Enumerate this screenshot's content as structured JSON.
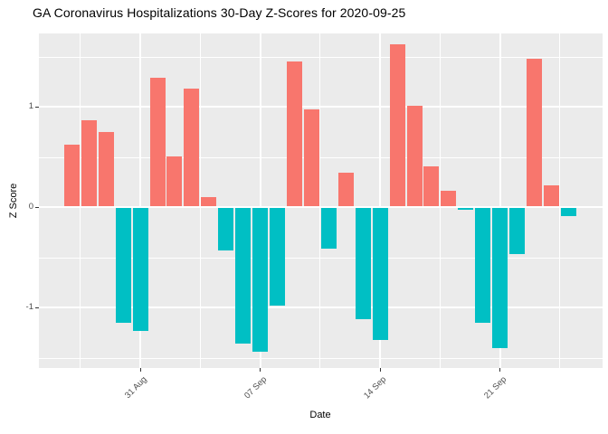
{
  "title": "GA Coronavirus Hospitalizations 30-Day Z-Scores for 2020-09-25",
  "chart_data": {
    "type": "bar",
    "title": "GA Coronavirus Hospitalizations 30-Day Z-Scores for 2020-09-25",
    "xlabel": "Date",
    "ylabel": "Z Score",
    "ylim": [
      -1.6,
      1.73
    ],
    "grid": "on",
    "legend": "none",
    "categories": [
      "2020-08-27",
      "2020-08-28",
      "2020-08-29",
      "2020-08-30",
      "2020-08-31",
      "2020-09-01",
      "2020-09-02",
      "2020-09-03",
      "2020-09-04",
      "2020-09-05",
      "2020-09-06",
      "2020-09-07",
      "2020-09-08",
      "2020-09-09",
      "2020-09-10",
      "2020-09-11",
      "2020-09-12",
      "2020-09-13",
      "2020-09-14",
      "2020-09-15",
      "2020-09-16",
      "2020-09-17",
      "2020-09-18",
      "2020-09-19",
      "2020-09-20",
      "2020-09-21",
      "2020-09-22",
      "2020-09-23",
      "2020-09-24",
      "2020-09-25"
    ],
    "values": [
      0.62,
      0.87,
      0.75,
      -1.15,
      -1.23,
      1.29,
      0.51,
      1.18,
      0.1,
      -0.43,
      -1.36,
      -1.44,
      -0.98,
      1.45,
      0.97,
      -0.41,
      0.34,
      -1.11,
      -1.32,
      1.62,
      1.01,
      0.41,
      0.16,
      -0.02,
      -1.15,
      -1.4,
      -0.47,
      1.48,
      0.22,
      -0.09
    ],
    "x_tick_labels": [
      "31 Aug",
      "07 Sep",
      "14 Sep",
      "21 Sep"
    ],
    "x_tick_day_index": [
      4,
      11,
      18,
      25
    ],
    "y_tick_labels": [
      "1",
      "0",
      "-1"
    ],
    "y_tick_values": [
      1,
      0,
      -1
    ],
    "y_minor_values": [
      1.5,
      0.5,
      -0.5,
      -1.5
    ],
    "colors": {
      "positive_bar": "#F8766D",
      "negative_bar": "#00BFC4",
      "panel_background": "#EBEBEB",
      "gridline": "#FFFFFF",
      "axis_text": "#4D4D4D",
      "tick_mark": "#333333",
      "title_text": "#000000"
    }
  }
}
